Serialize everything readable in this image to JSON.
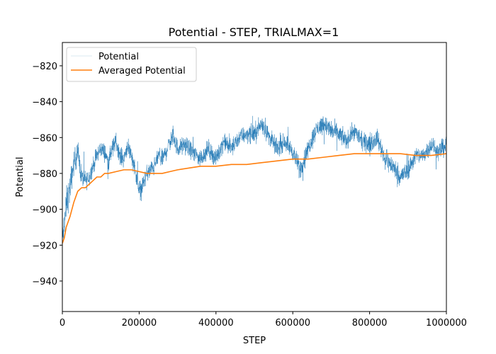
{
  "chart_data": {
    "type": "line",
    "title": "Potential - STEP, TRIALMAX=1",
    "xlabel": "STEP",
    "ylabel": "Potential",
    "xlim": [
      0,
      1000000
    ],
    "ylim": [
      -957,
      -807
    ],
    "xticks": [
      0,
      200000,
      400000,
      600000,
      800000,
      1000000
    ],
    "xtick_labels": [
      "0",
      "200000",
      "400000",
      "600000",
      "800000",
      "1000000"
    ],
    "yticks": [
      -940,
      -920,
      -900,
      -880,
      -860,
      -840,
      -820
    ],
    "ytick_labels": [
      "−940",
      "−920",
      "−900",
      "−880",
      "−860",
      "−840",
      "−820"
    ],
    "grid": false,
    "legend_position": "top-left",
    "series": [
      {
        "name": "Potential",
        "color": "#1f77b4",
        "style": "noisy-thin",
        "x": [
          0,
          10000,
          20000,
          30000,
          40000,
          50000,
          60000,
          70000,
          80000,
          90000,
          100000,
          110000,
          120000,
          130000,
          140000,
          150000,
          160000,
          170000,
          180000,
          190000,
          200000,
          210000,
          220000,
          230000,
          240000,
          250000,
          260000,
          270000,
          280000,
          290000,
          300000,
          320000,
          340000,
          360000,
          380000,
          400000,
          420000,
          440000,
          460000,
          480000,
          500000,
          520000,
          540000,
          560000,
          580000,
          600000,
          620000,
          640000,
          660000,
          680000,
          700000,
          720000,
          740000,
          760000,
          780000,
          800000,
          820000,
          840000,
          860000,
          880000,
          900000,
          920000,
          940000,
          960000,
          980000,
          1000000
        ],
        "y": [
          -918,
          -898,
          -888,
          -874,
          -868,
          -882,
          -884,
          -882,
          -876,
          -870,
          -866,
          -868,
          -874,
          -866,
          -862,
          -870,
          -872,
          -864,
          -870,
          -878,
          -890,
          -886,
          -880,
          -878,
          -876,
          -870,
          -872,
          -868,
          -862,
          -860,
          -866,
          -864,
          -868,
          -872,
          -866,
          -872,
          -862,
          -866,
          -860,
          -858,
          -858,
          -852,
          -860,
          -866,
          -862,
          -868,
          -878,
          -866,
          -856,
          -852,
          -856,
          -858,
          -862,
          -856,
          -862,
          -864,
          -860,
          -872,
          -876,
          -882,
          -878,
          -870,
          -870,
          -864,
          -868,
          -864
        ],
        "band": [
          12,
          14,
          12,
          10,
          9,
          8,
          8,
          7,
          7,
          7,
          7,
          7,
          7,
          7,
          7,
          7,
          7,
          7,
          7,
          7,
          8,
          7,
          7,
          7,
          7,
          7,
          7,
          7,
          7,
          8,
          7,
          7,
          7,
          7,
          7,
          7,
          7,
          7,
          7,
          7,
          8,
          8,
          7,
          7,
          7,
          7,
          8,
          7,
          8,
          8,
          8,
          8,
          7,
          7,
          7,
          7,
          7,
          8,
          8,
          8,
          8,
          7,
          7,
          7,
          7,
          8
        ]
      },
      {
        "name": "Averaged Potential",
        "color": "#ff7f0e",
        "style": "line",
        "x": [
          0,
          5000,
          10000,
          20000,
          30000,
          40000,
          50000,
          60000,
          70000,
          80000,
          90000,
          100000,
          110000,
          120000,
          140000,
          160000,
          180000,
          200000,
          220000,
          240000,
          260000,
          280000,
          300000,
          330000,
          360000,
          400000,
          440000,
          480000,
          520000,
          560000,
          600000,
          640000,
          680000,
          720000,
          760000,
          800000,
          840000,
          880000,
          920000,
          960000,
          1000000
        ],
        "y": [
          -919,
          -916,
          -910,
          -904,
          -896,
          -890,
          -888,
          -888,
          -886,
          -884,
          -882,
          -882,
          -880,
          -880,
          -879,
          -878,
          -878,
          -879,
          -880,
          -880,
          -880,
          -879,
          -878,
          -877,
          -876,
          -876,
          -875,
          -875,
          -874,
          -873,
          -872,
          -872,
          -871,
          -870,
          -869,
          -869,
          -869,
          -869,
          -870,
          -870,
          -869
        ]
      }
    ]
  }
}
